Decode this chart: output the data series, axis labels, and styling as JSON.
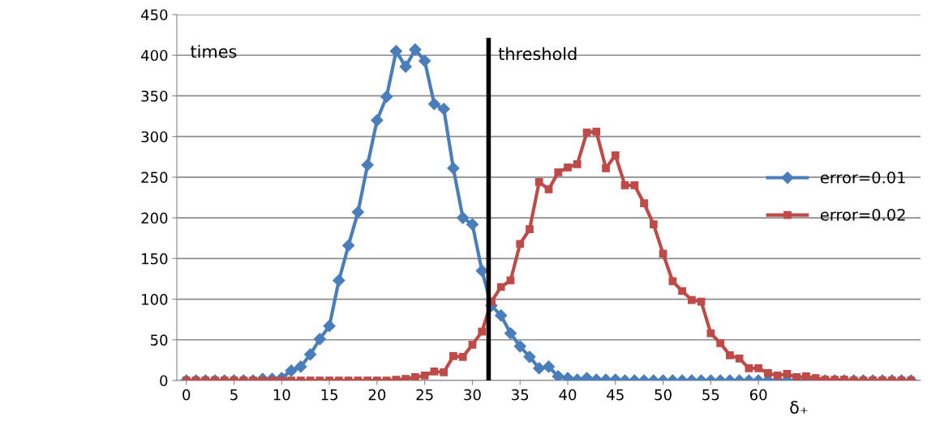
{
  "chart_data": {
    "type": "line",
    "xlabel": "δ₊",
    "annotations": [
      "times"
    ],
    "x": [
      0,
      1,
      2,
      3,
      4,
      5,
      6,
      7,
      8,
      9,
      10,
      11,
      12,
      13,
      14,
      15,
      16,
      17,
      18,
      19,
      20,
      21,
      22,
      23,
      24,
      25,
      26,
      27,
      28,
      29,
      30,
      31,
      32,
      33,
      34,
      35,
      36,
      37,
      38,
      39,
      40,
      41,
      42,
      43,
      44,
      45,
      46,
      47,
      48,
      49,
      50,
      51,
      52,
      53,
      54,
      55,
      56,
      57,
      58,
      59,
      60,
      61,
      62,
      63,
      64,
      65,
      66,
      67,
      68,
      69,
      70,
      71,
      72,
      73,
      74,
      75,
      76
    ],
    "series": [
      {
        "name": "error=0.01",
        "color": "#4a7ebb",
        "marker": "diamond",
        "values": [
          0,
          0,
          0,
          0,
          0,
          0,
          0,
          0,
          2,
          2,
          3,
          12,
          17,
          32,
          51,
          67,
          123,
          166,
          207,
          265,
          320,
          349,
          405,
          386,
          407,
          393,
          340,
          334,
          261,
          200,
          192,
          135,
          92,
          80,
          58,
          42,
          29,
          15,
          17,
          5,
          3,
          1,
          3,
          1,
          1,
          1,
          0,
          0,
          0,
          0,
          0,
          0,
          0,
          0,
          0,
          0,
          0,
          0,
          0,
          0,
          0,
          0,
          0,
          0,
          0,
          0,
          0,
          0,
          0,
          0,
          0,
          0,
          0,
          0,
          0,
          0,
          0
        ]
      },
      {
        "name": "error=0.02",
        "color": "#be4b48",
        "marker": "square",
        "values": [
          0,
          0,
          0,
          0,
          0,
          0,
          0,
          0,
          0,
          0,
          0,
          0,
          0,
          0,
          0,
          0,
          0,
          0,
          0,
          0,
          0,
          0,
          1,
          2,
          4,
          6,
          11,
          10,
          30,
          29,
          44,
          60,
          97,
          115,
          123,
          168,
          186,
          244,
          235,
          256,
          262,
          266,
          305,
          306,
          261,
          277,
          240,
          240,
          218,
          192,
          156,
          122,
          110,
          99,
          97,
          58,
          46,
          31,
          27,
          15,
          15,
          9,
          6,
          8,
          4,
          5,
          3,
          1,
          1,
          1,
          0,
          0,
          0,
          0,
          0,
          0,
          0
        ]
      }
    ],
    "xlim": [
      -1,
      77
    ],
    "xticks": [
      0,
      5,
      10,
      15,
      20,
      25,
      30,
      35,
      40,
      45,
      50,
      55,
      60
    ],
    "ylim": [
      0,
      450
    ],
    "yticks": [
      0,
      50,
      100,
      150,
      200,
      250,
      300,
      350,
      400,
      450
    ],
    "grid": "y",
    "legend": "right",
    "line_style": "solid",
    "ref_lines": [
      {
        "axis": "x",
        "value": 31.7,
        "label": "threshold",
        "color": "#000000",
        "line_style": "solid"
      }
    ]
  }
}
